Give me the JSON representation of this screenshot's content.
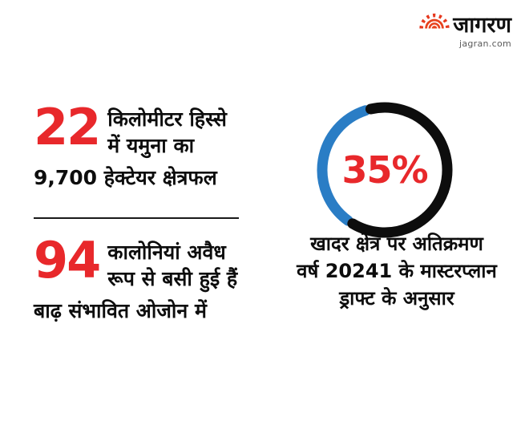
{
  "brand": {
    "logo_text": "जागरण",
    "domain": "jagran.com",
    "icon": "sun-icon",
    "icon_colors": {
      "red": "#e6381e",
      "orange": "#f08a1e"
    }
  },
  "colors": {
    "accent_red": "#e8282b",
    "chart_blue": "#2a7dc5",
    "chart_black": "#0d0d0d",
    "text_black": "#0d0d0d"
  },
  "stats": [
    {
      "number": "22",
      "line1": "किलोमीटर हिस्से",
      "line2": "में यमुना का",
      "line3": "9,700 हेक्टेयर क्षेत्रफल"
    },
    {
      "number": "94",
      "line1": "कालोनियां अवैध",
      "line2": "रूप से बसी हुई हैं",
      "line3": "बाढ़ संभावित ओजोन में"
    }
  ],
  "chart_data": {
    "type": "pie",
    "subtype": "donut",
    "center_label": "35%",
    "values": [
      35,
      65
    ],
    "colors": [
      "#2a7dc5",
      "#0d0d0d"
    ],
    "legend_position": "none",
    "caption_lines": [
      "खादर क्षेत्र पर अतिक्रमण",
      "वर्ष 20241 के मास्टरप्लान",
      "ड्राफ्ट के अनुसार"
    ]
  }
}
